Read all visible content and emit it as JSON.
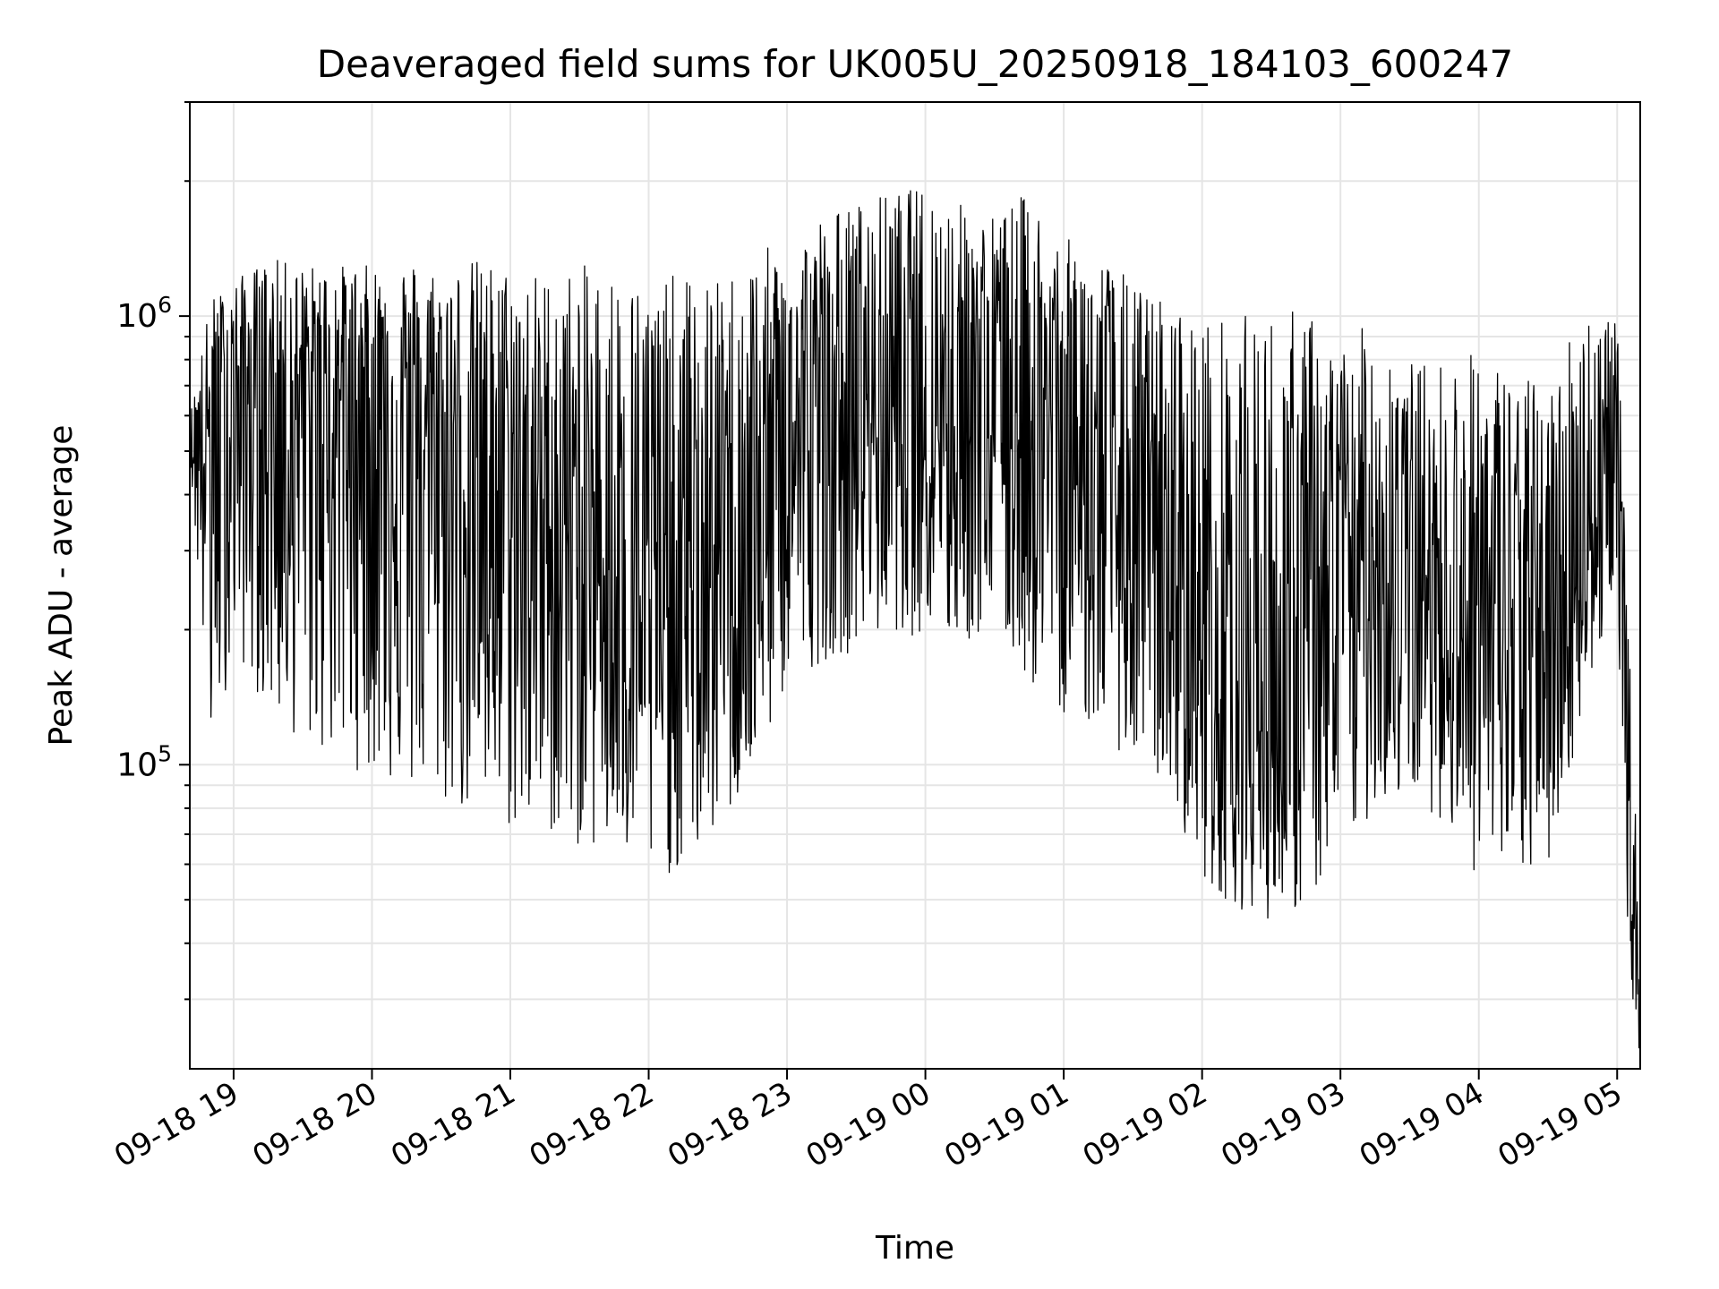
{
  "chart_data": {
    "type": "line",
    "title": "Deaveraged field sums for UK005U_20250918_184103_600247",
    "xlabel": "Time",
    "ylabel": "Peak ADU - average",
    "y_scale": "log",
    "ylim": [
      21000,
      3000000
    ],
    "xlim": [
      "2025-09-18 18:41",
      "2025-09-19 05:10"
    ],
    "x_ticks": [
      {
        "label": "09-18 19",
        "time": "2025-09-18 19:00"
      },
      {
        "label": "09-18 20",
        "time": "2025-09-18 20:00"
      },
      {
        "label": "09-18 21",
        "time": "2025-09-18 21:00"
      },
      {
        "label": "09-18 22",
        "time": "2025-09-18 22:00"
      },
      {
        "label": "09-18 23",
        "time": "2025-09-18 23:00"
      },
      {
        "label": "09-19 00",
        "time": "2025-09-19 00:00"
      },
      {
        "label": "09-19 01",
        "time": "2025-09-19 01:00"
      },
      {
        "label": "09-19 02",
        "time": "2025-09-19 02:00"
      },
      {
        "label": "09-19 03",
        "time": "2025-09-19 03:00"
      },
      {
        "label": "09-19 04",
        "time": "2025-09-19 04:00"
      },
      {
        "label": "09-19 05",
        "time": "2025-09-19 05:00"
      }
    ],
    "y_major_ticks": [
      {
        "base": "10",
        "exp": "5",
        "value": 100000
      },
      {
        "base": "10",
        "exp": "6",
        "value": 1000000
      }
    ],
    "grid": true,
    "legend": "none",
    "line_color": "#000000",
    "grid_color": "#e5e5e5",
    "envelope_samples": {
      "note_units": "Peak ADU - average",
      "x": [
        "2025-09-18 18:41",
        "2025-09-18 18:50",
        "2025-09-18 19:00",
        "2025-09-18 19:15",
        "2025-09-18 19:30",
        "2025-09-18 19:45",
        "2025-09-18 20:00",
        "2025-09-18 20:15",
        "2025-09-18 20:30",
        "2025-09-18 20:45",
        "2025-09-18 21:00",
        "2025-09-18 21:15",
        "2025-09-18 21:30",
        "2025-09-18 21:45",
        "2025-09-18 22:00",
        "2025-09-18 22:15",
        "2025-09-18 22:30",
        "2025-09-18 22:45",
        "2025-09-18 23:00",
        "2025-09-18 23:15",
        "2025-09-18 23:30",
        "2025-09-18 23:45",
        "2025-09-19 00:00",
        "2025-09-19 00:15",
        "2025-09-19 00:30",
        "2025-09-19 00:45",
        "2025-09-19 01:00",
        "2025-09-19 01:15",
        "2025-09-19 01:30",
        "2025-09-19 01:45",
        "2025-09-19 02:00",
        "2025-09-19 02:15",
        "2025-09-19 02:30",
        "2025-09-19 02:45",
        "2025-09-19 03:00",
        "2025-09-19 03:15",
        "2025-09-19 03:30",
        "2025-09-19 03:45",
        "2025-09-19 04:00",
        "2025-09-19 04:15",
        "2025-09-19 04:30",
        "2025-09-19 04:45",
        "2025-09-19 05:00",
        "2025-09-19 05:05",
        "2025-09-19 05:10"
      ],
      "upper": [
        600000,
        1100000,
        1200000,
        1350000,
        1300000,
        1300000,
        1300000,
        1350000,
        1300000,
        1350000,
        1300000,
        1250000,
        1300000,
        1300000,
        1200000,
        1250000,
        1200000,
        1400000,
        1450000,
        1700000,
        1800000,
        1900000,
        1950000,
        1800000,
        1700000,
        1900000,
        1500000,
        1400000,
        1200000,
        1100000,
        1000000,
        1000000,
        1050000,
        1050000,
        850000,
        1000000,
        800000,
        800000,
        850000,
        750000,
        700000,
        1100000,
        1000000,
        200000,
        40000
      ],
      "median": [
        520000,
        550000,
        700000,
        650000,
        680000,
        700000,
        680000,
        600000,
        500000,
        450000,
        380000,
        350000,
        300000,
        280000,
        230000,
        230000,
        280000,
        330000,
        480000,
        550000,
        600000,
        630000,
        700000,
        650000,
        600000,
        650000,
        500000,
        400000,
        300000,
        250000,
        180000,
        150000,
        120000,
        150000,
        250000,
        300000,
        260000,
        220000,
        200000,
        190000,
        180000,
        300000,
        450000,
        80000,
        28000
      ],
      "lower": [
        480000,
        100000,
        180000,
        130000,
        110000,
        100000,
        95000,
        85000,
        80000,
        75000,
        70000,
        70000,
        65000,
        62000,
        55000,
        58000,
        70000,
        90000,
        150000,
        170000,
        180000,
        200000,
        190000,
        180000,
        200000,
        150000,
        130000,
        120000,
        100000,
        90000,
        55000,
        48000,
        45000,
        48000,
        60000,
        80000,
        85000,
        75000,
        55000,
        55000,
        58000,
        130000,
        250000,
        35000,
        22000
      ]
    }
  }
}
